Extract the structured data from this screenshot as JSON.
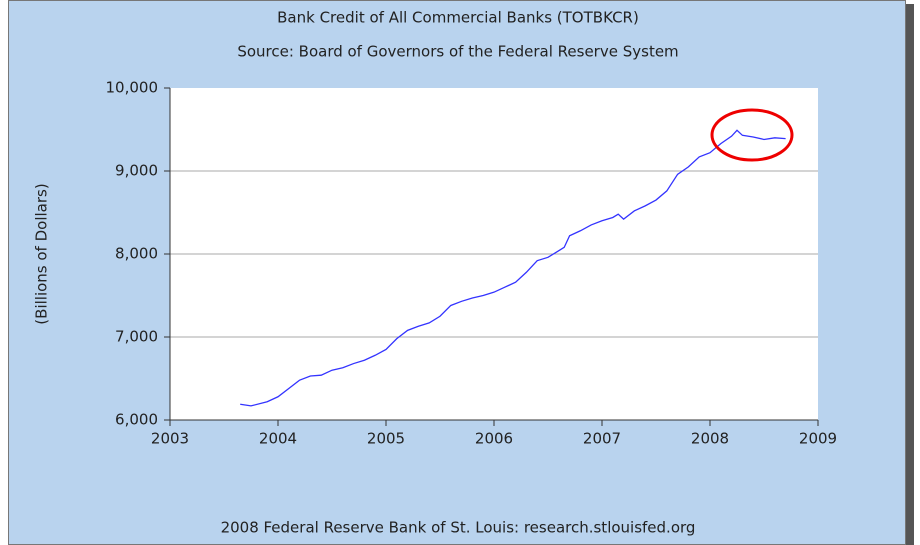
{
  "chart_data": {
    "type": "line",
    "title": "Bank Credit of All Commercial Banks (TOTBKCR)",
    "subtitle": "Source: Board of Governors of the Federal Reserve System",
    "ylabel": "(Billions of Dollars)",
    "footer": "2008 Federal Reserve Bank of St. Louis: research.stlouisfed.org",
    "x": [
      2003.65,
      2003.75,
      2003.9,
      2004.0,
      2004.1,
      2004.2,
      2004.3,
      2004.4,
      2004.5,
      2004.6,
      2004.7,
      2004.8,
      2004.9,
      2005.0,
      2005.1,
      2005.2,
      2005.3,
      2005.4,
      2005.5,
      2005.6,
      2005.7,
      2005.8,
      2005.9,
      2006.0,
      2006.1,
      2006.2,
      2006.3,
      2006.4,
      2006.5,
      2006.6,
      2006.65,
      2006.7,
      2006.8,
      2006.9,
      2007.0,
      2007.1,
      2007.15,
      2007.2,
      2007.3,
      2007.4,
      2007.5,
      2007.6,
      2007.7,
      2007.8,
      2007.9,
      2008.0,
      2008.1,
      2008.2,
      2008.25,
      2008.3,
      2008.4,
      2008.5,
      2008.6,
      2008.7
    ],
    "series": [
      {
        "name": "TOTBKCR",
        "color": "#3333ff",
        "values": [
          6190,
          6170,
          6220,
          6280,
          6380,
          6480,
          6530,
          6540,
          6600,
          6630,
          6680,
          6720,
          6780,
          6850,
          6980,
          7080,
          7130,
          7170,
          7250,
          7380,
          7430,
          7470,
          7500,
          7540,
          7600,
          7660,
          7780,
          7920,
          7960,
          8040,
          8080,
          8220,
          8280,
          8350,
          8400,
          8440,
          8480,
          8420,
          8520,
          8580,
          8650,
          8760,
          8960,
          9050,
          9170,
          9220,
          9330,
          9420,
          9490,
          9430,
          9410,
          9380,
          9400,
          9390
        ]
      }
    ],
    "xlim": [
      2003,
      2009
    ],
    "xticks": [
      2003,
      2004,
      2005,
      2006,
      2007,
      2008,
      2009
    ],
    "ylim": [
      6000,
      10000
    ],
    "yticks": [
      {
        "value": 6000,
        "label": "6,000"
      },
      {
        "value": 7000,
        "label": "7,000"
      },
      {
        "value": 8000,
        "label": "8,000"
      },
      {
        "value": 9000,
        "label": "9,000"
      },
      {
        "value": 10000,
        "label": "10,000"
      }
    ],
    "grid": true
  }
}
